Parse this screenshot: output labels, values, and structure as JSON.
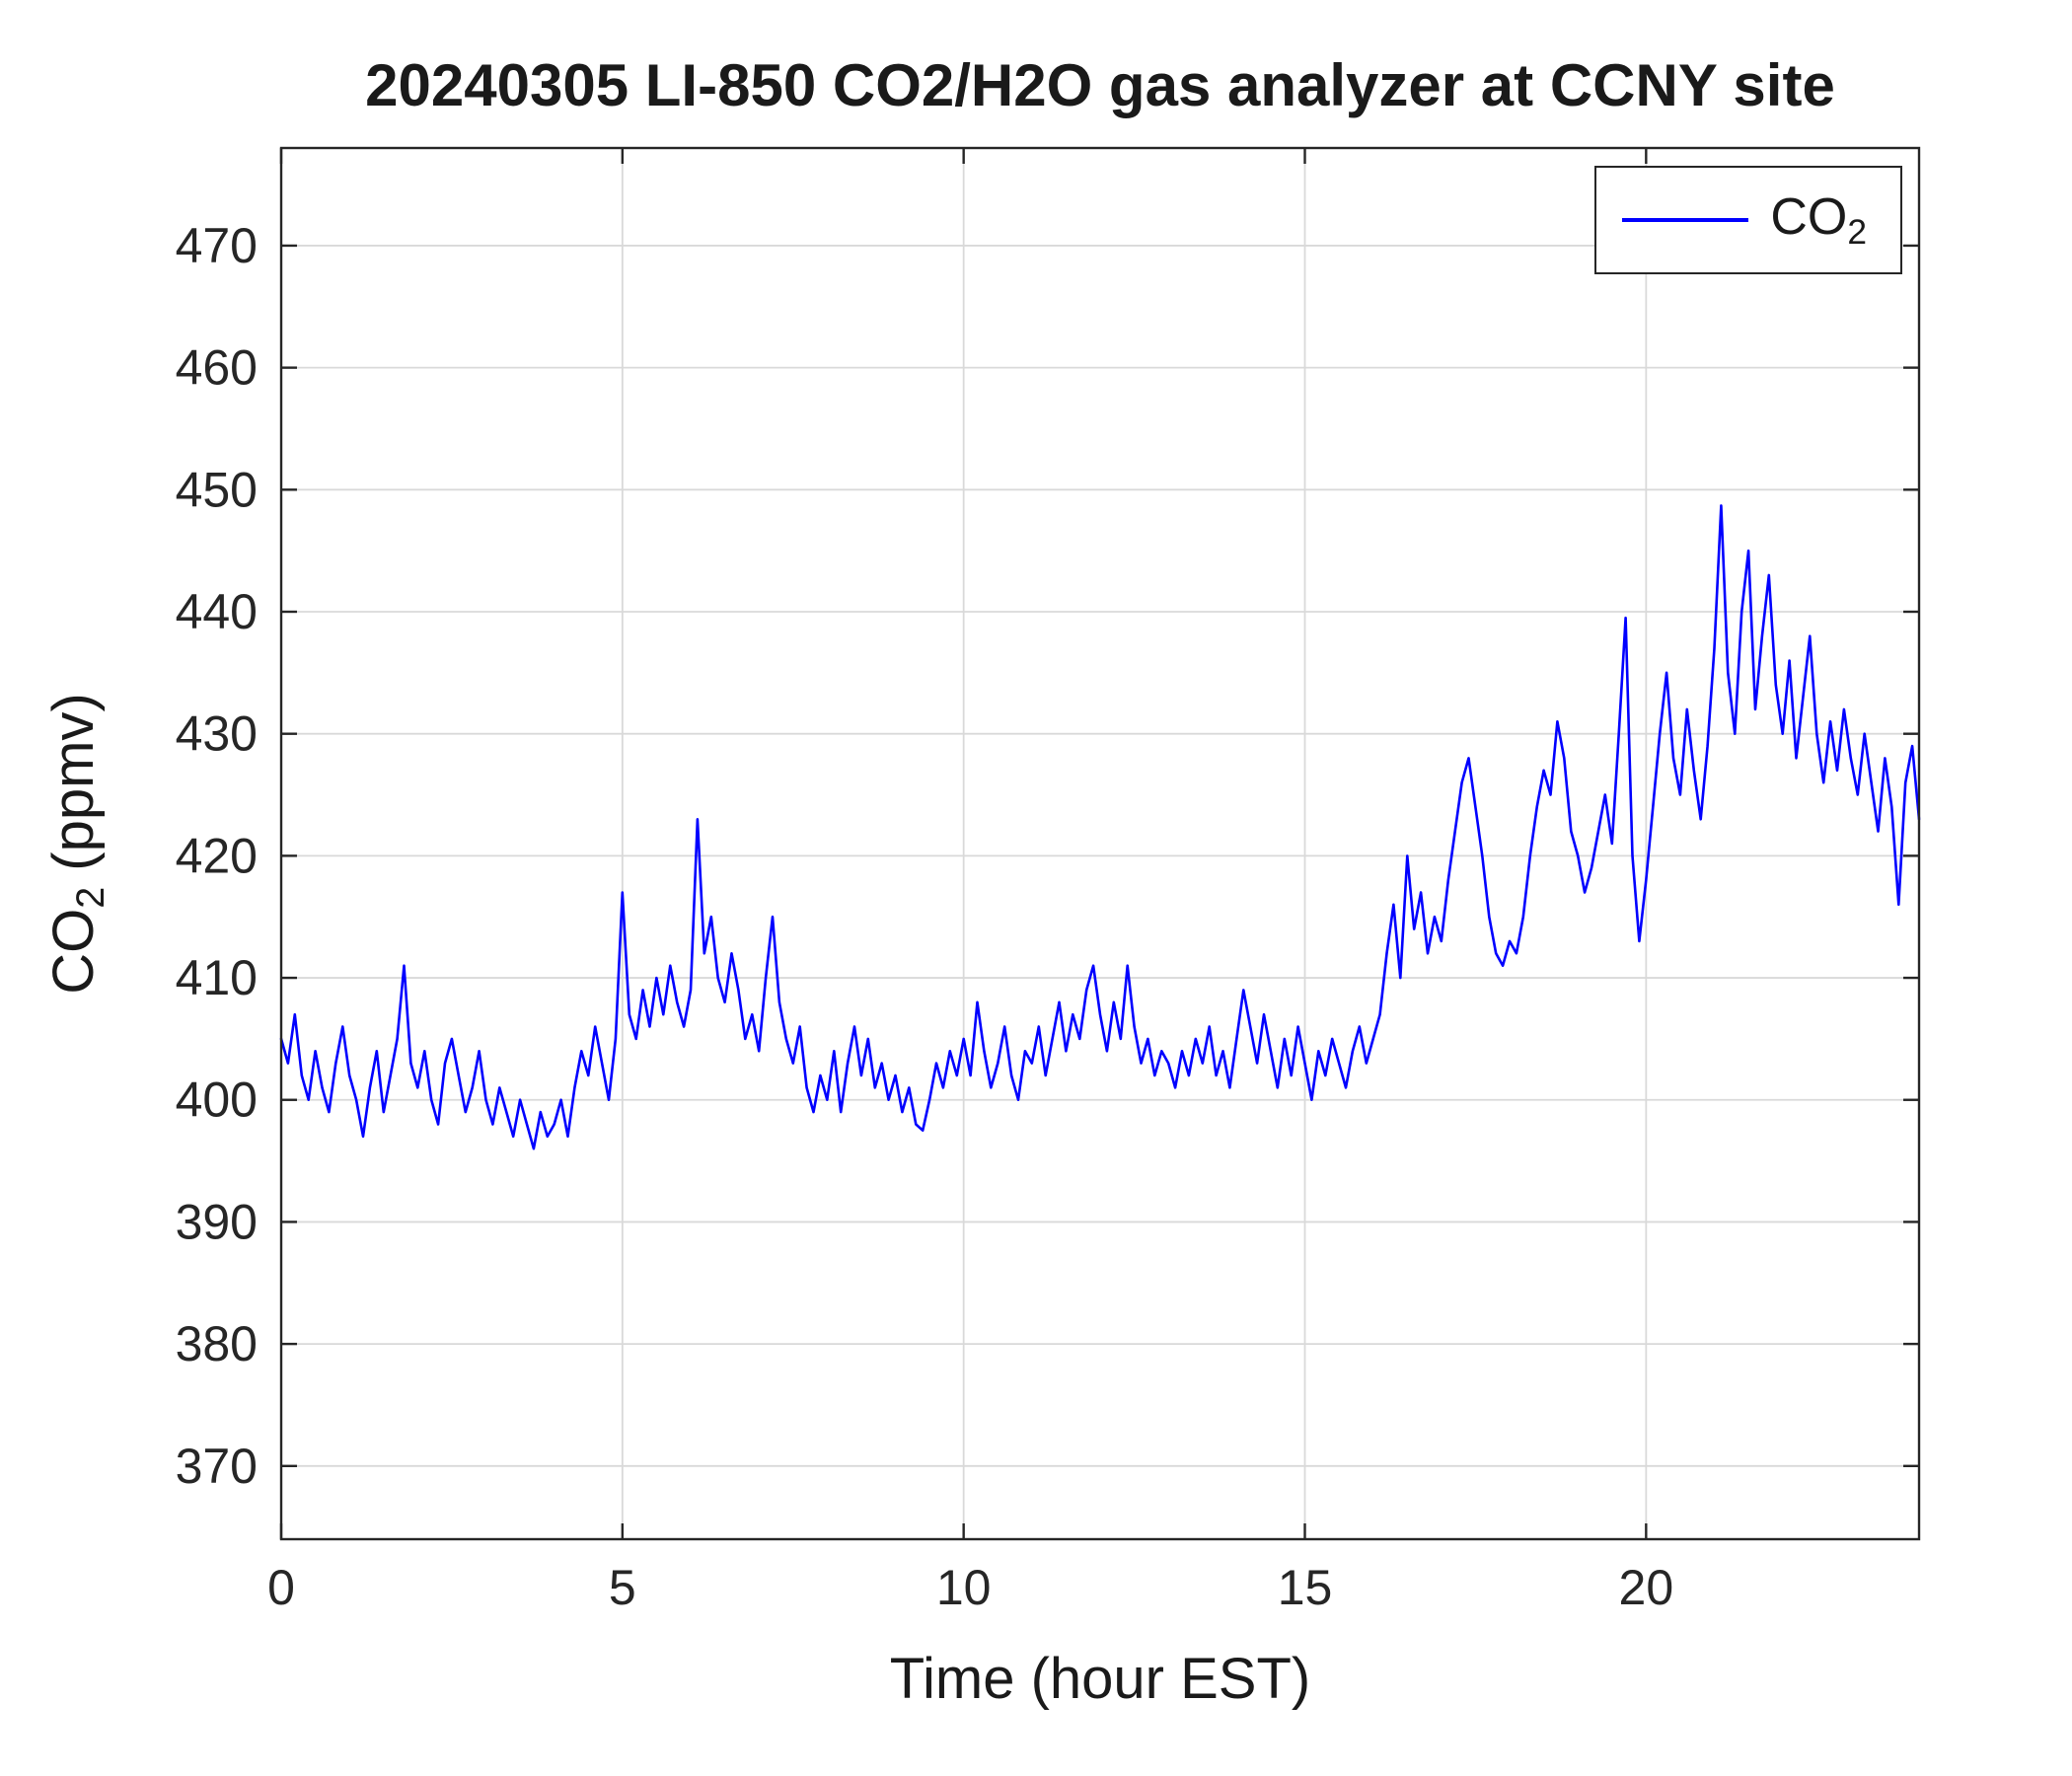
{
  "chart_data": {
    "type": "line",
    "title": "20240305 LI-850 CO2/H2O gas analyzer at CCNY site",
    "xlabel": "Time (hour EST)",
    "ylabel": {
      "main": "CO",
      "sub": "2",
      "rest": " (ppmv)"
    },
    "legend": {
      "position": "top-right",
      "entries": [
        {
          "label_main": "CO",
          "label_sub": "2",
          "color": "#0000ff"
        }
      ]
    },
    "xlim": [
      0,
      24
    ],
    "ylim": [
      364,
      478
    ],
    "xticks": [
      0,
      5,
      10,
      15,
      20
    ],
    "yticks": [
      370,
      380,
      390,
      400,
      410,
      420,
      430,
      440,
      450,
      460,
      470
    ],
    "grid": true,
    "grid_color": "#d9d9d9",
    "axis_color": "#262626",
    "line_color": "#0000ff",
    "series_name": "CO2",
    "x_start": 0,
    "x_step": 0.1,
    "values": [
      405,
      403,
      407,
      402,
      400,
      404,
      401,
      399,
      403,
      406,
      402,
      400,
      397,
      401,
      404,
      399,
      402,
      405,
      411,
      403,
      401,
      404,
      400,
      398,
      403,
      405,
      402,
      399,
      401,
      404,
      400,
      398,
      401,
      399,
      397,
      400,
      398,
      396,
      399,
      397,
      398,
      400,
      397,
      401,
      404,
      402,
      406,
      403,
      400,
      405,
      417,
      407,
      405,
      409,
      406,
      410,
      407,
      411,
      408,
      406,
      409,
      423,
      412,
      415,
      410,
      408,
      412,
      409,
      405,
      407,
      404,
      410,
      415,
      408,
      405,
      403,
      406,
      401,
      399,
      402,
      400,
      404,
      399,
      403,
      406,
      402,
      405,
      401,
      403,
      400,
      402,
      399,
      401,
      398,
      397.5,
      400,
      403,
      401,
      404,
      402,
      405,
      402,
      408,
      404,
      401,
      403,
      406,
      402,
      400,
      404,
      403,
      406,
      402,
      405,
      408,
      404,
      407,
      405,
      409,
      411,
      407,
      404,
      408,
      405,
      411,
      406,
      403,
      405,
      402,
      404,
      403,
      401,
      404,
      402,
      405,
      403,
      406,
      402,
      404,
      401,
      405,
      409,
      406,
      403,
      407,
      404,
      401,
      405,
      402,
      406,
      403,
      400,
      404,
      402,
      405,
      403,
      401,
      404,
      406,
      403,
      405,
      407,
      412,
      416,
      410,
      420,
      414,
      417,
      412,
      415,
      413,
      418,
      422,
      426,
      428,
      424,
      420,
      415,
      412,
      411,
      413,
      412,
      415,
      420,
      424,
      427,
      425,
      431,
      428,
      422,
      420,
      417,
      419,
      422,
      425,
      421,
      430,
      439.5,
      420,
      413,
      418,
      424,
      430,
      435,
      428,
      425,
      432,
      427,
      423,
      429,
      437,
      448.7,
      435,
      430,
      440,
      445,
      432,
      438,
      443,
      434,
      430,
      436,
      428,
      433,
      438,
      430,
      426,
      431,
      427,
      432,
      428,
      425,
      430,
      426,
      422,
      428,
      424,
      416,
      426,
      429,
      423
    ]
  }
}
